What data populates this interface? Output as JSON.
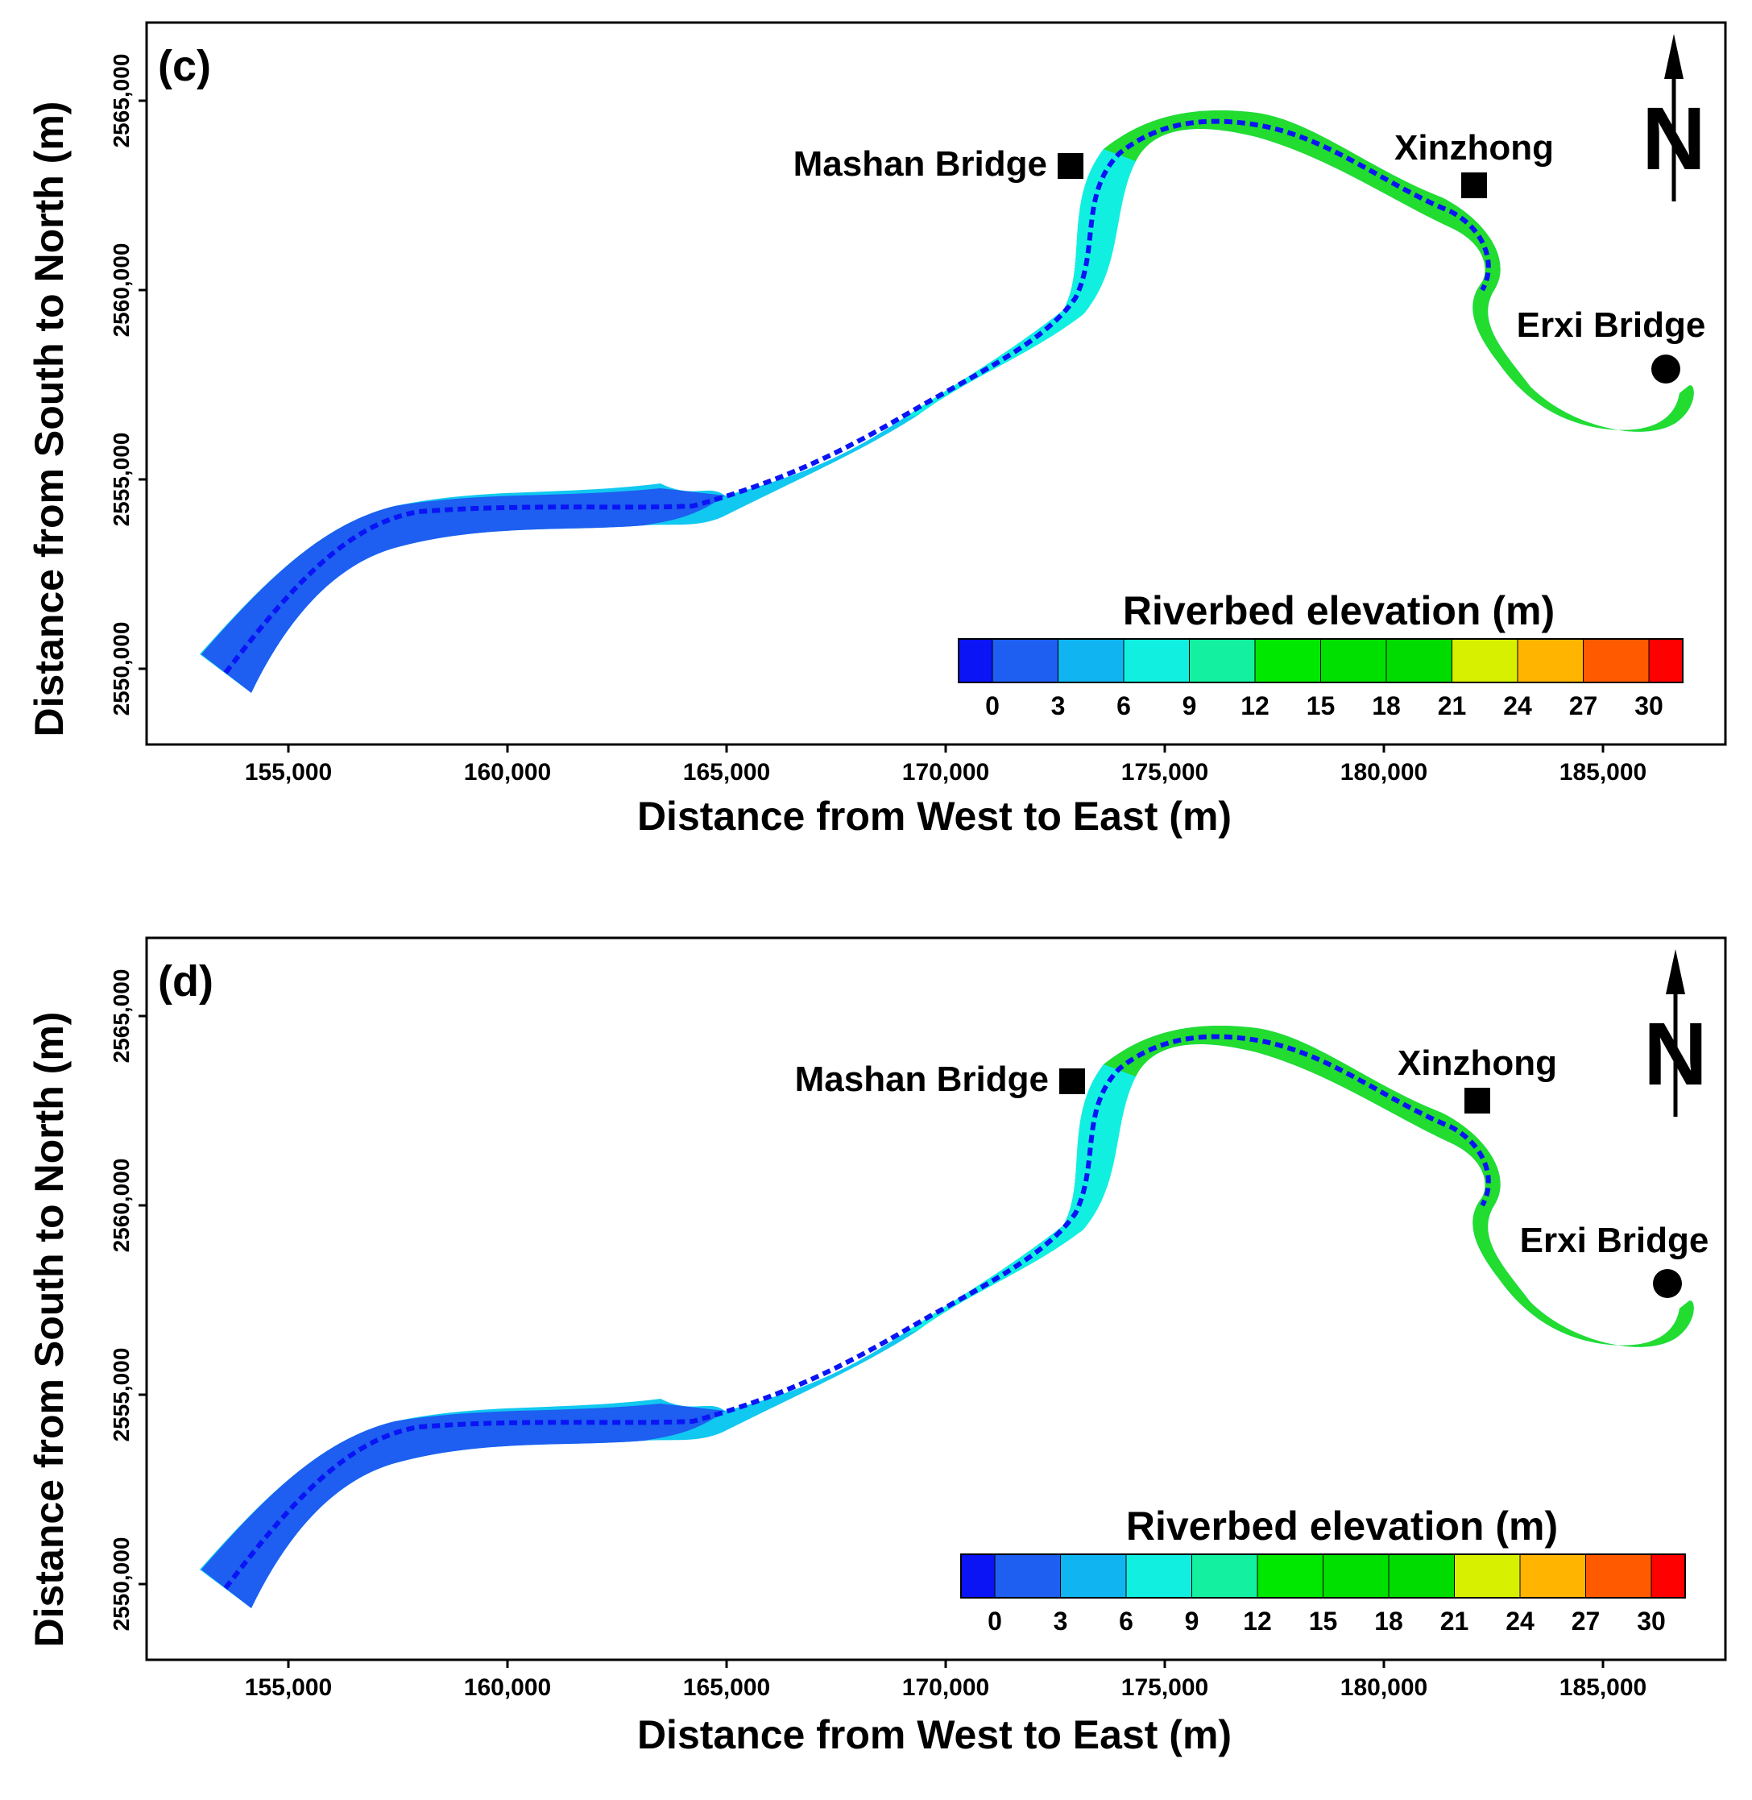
{
  "legend": {
    "title": "Riverbed elevation (m)",
    "ticks": [
      "0",
      "3",
      "6",
      "9",
      "12",
      "15",
      "18",
      "21",
      "24",
      "27",
      "30"
    ],
    "colors": [
      "#0a14f5",
      "#1e5ef0",
      "#10b4f0",
      "#11f0e0",
      "#13f0a0",
      "#00e800",
      "#00e000",
      "#00dc00",
      "#d6f000",
      "#ffb400",
      "#ff5a00",
      "#ff0000"
    ]
  },
  "axes": {
    "x_label": "Distance from West to East (m)",
    "y_label": "Distance from  South to North (m)",
    "x_ticks": [
      "155,000",
      "160,000",
      "165,000",
      "170,000",
      "175,000",
      "180,000",
      "185,000"
    ],
    "y_ticks": [
      "2550,000",
      "2555,000",
      "2560,000",
      "2565,000"
    ]
  },
  "north_arrow": {
    "label": "N",
    "icon": "north-arrow-icon"
  },
  "panels": [
    {
      "id": "c",
      "label": "(c)",
      "places": [
        {
          "name": "Mashan Bridge",
          "symbol": "square"
        },
        {
          "name": "Xinzhong",
          "symbol": "square"
        },
        {
          "name": "Erxi Bridge",
          "symbol": "circle"
        }
      ]
    },
    {
      "id": "d",
      "label": "(d)",
      "places": [
        {
          "name": "Mashan Bridge",
          "symbol": "square"
        },
        {
          "name": "Xinzhong",
          "symbol": "square"
        },
        {
          "name": "Erxi Bridge",
          "symbol": "circle"
        }
      ]
    }
  ]
}
